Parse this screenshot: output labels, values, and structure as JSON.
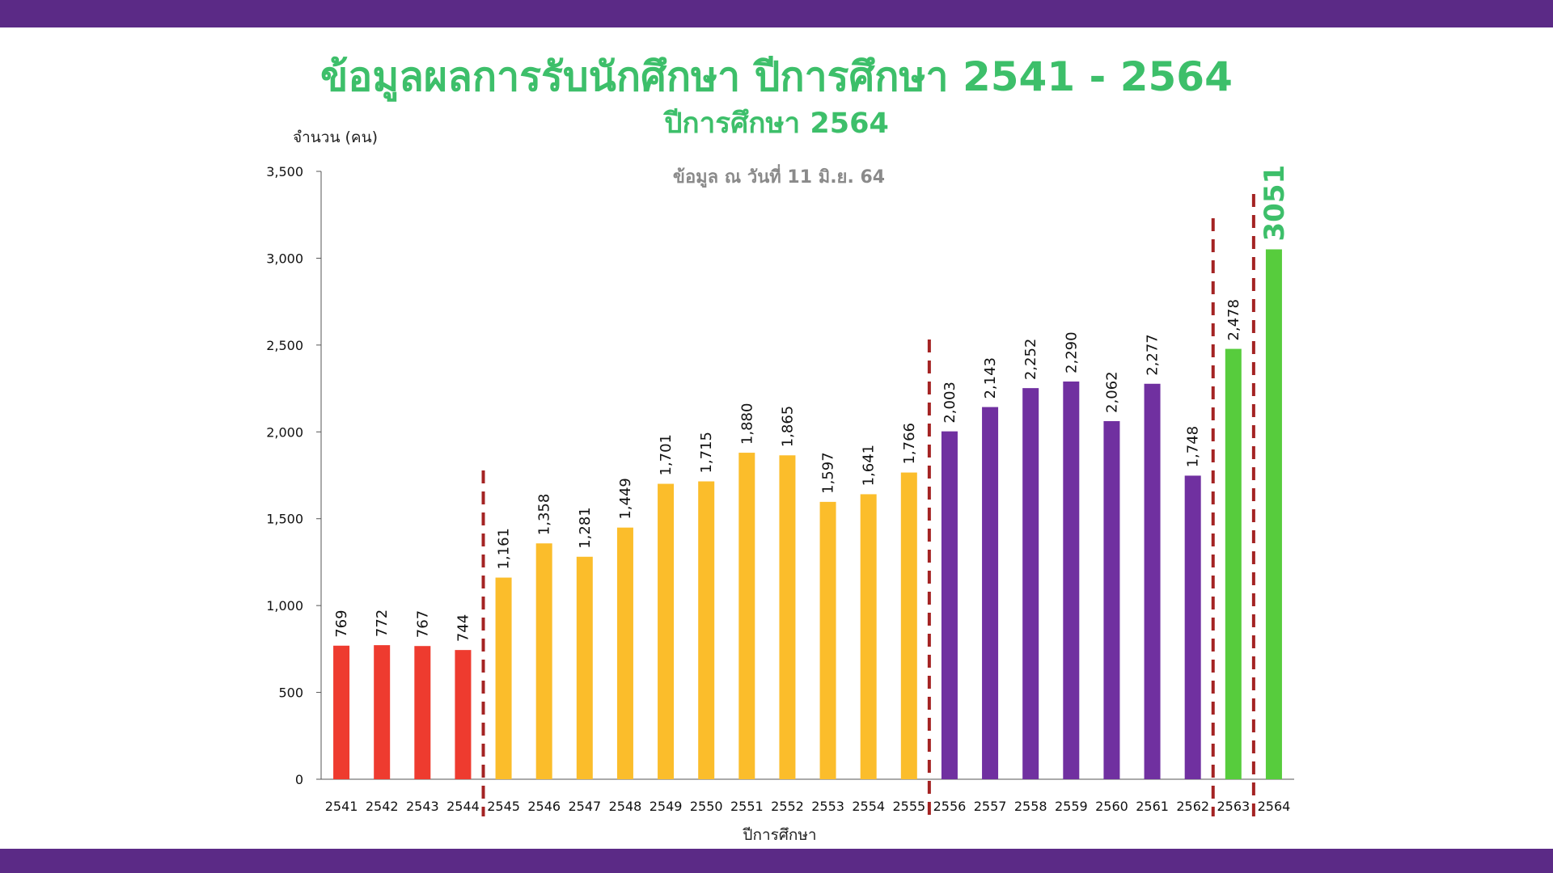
{
  "title": "ข้อมูลผลการรับนักศึกษา ปีการศึกษา 2541 - 2564",
  "subtitle": "ปีการศึกษา 2564",
  "colors": {
    "band": "#5b2a86",
    "title": "#3dbf6a",
    "red": "#ee3b2f",
    "yellow": "#fbbd2b",
    "purple": "#7030a0",
    "green": "#57cc3d",
    "divider": "#a42323"
  },
  "chart_data": {
    "type": "bar",
    "ylabel": "จำนวน (คน)",
    "xlabel": "ปีการศึกษา",
    "note": "ข้อมูล ณ วันที่ 11 มิ.ย. 64",
    "ylim": [
      0,
      3500
    ],
    "yticks": [
      "0",
      "500",
      "1,000",
      "1,500",
      "2,000",
      "2,500",
      "3,000",
      "3,500"
    ],
    "categories": [
      "2541",
      "2542",
      "2543",
      "2544",
      "2545",
      "2546",
      "2547",
      "2548",
      "2549",
      "2550",
      "2551",
      "2552",
      "2553",
      "2554",
      "2555",
      "2556",
      "2557",
      "2558",
      "2559",
      "2560",
      "2561",
      "2562",
      "2563",
      "2564"
    ],
    "values": [
      769,
      772,
      767,
      744,
      1161,
      1358,
      1281,
      1449,
      1701,
      1715,
      1880,
      1865,
      1597,
      1641,
      1766,
      2003,
      2143,
      2252,
      2290,
      2062,
      2277,
      1748,
      2478,
      3051
    ],
    "labels": [
      "769",
      "772",
      "767",
      "744",
      "1,161",
      "1,358",
      "1,281",
      "1,449",
      "1,701",
      "1,715",
      "1,880",
      "1,865",
      "1,597",
      "1,641",
      "1,766",
      "2,003",
      "2,143",
      "2,252",
      "2,290",
      "2,062",
      "2,277",
      "1,748",
      "2,478",
      "3051"
    ],
    "bar_colors": [
      "red",
      "red",
      "red",
      "red",
      "yellow",
      "yellow",
      "yellow",
      "yellow",
      "yellow",
      "yellow",
      "yellow",
      "yellow",
      "yellow",
      "yellow",
      "yellow",
      "purple",
      "purple",
      "purple",
      "purple",
      "purple",
      "purple",
      "purple",
      "green",
      "green"
    ],
    "dividers_after_index": [
      3,
      14,
      21,
      22
    ],
    "grid": false
  }
}
